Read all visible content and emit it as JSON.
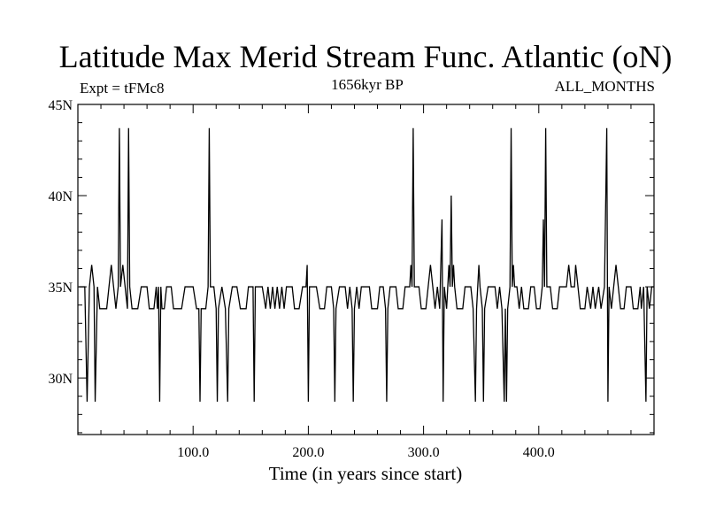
{
  "chart_data": {
    "type": "line",
    "title": "Latitude Max Merid Stream Func. Atlantic (oN)",
    "subtitle_left": "Expt = tFMc8",
    "subtitle_center": "1656kyr BP",
    "subtitle_right": "ALL_MONTHS",
    "xlabel": "Time (in years since start)",
    "ylabel": "",
    "xlim": [
      1,
      500
    ],
    "ylim": [
      26.9,
      45
    ],
    "x_ticks": [
      100,
      200,
      300,
      400
    ],
    "x_tick_labels": [
      "100.0",
      "200.0",
      "300.0",
      "400.0"
    ],
    "y_ticks": [
      30,
      35,
      40,
      45
    ],
    "y_tick_labels": [
      "30N",
      "35N",
      "40N",
      "45N"
    ],
    "grid": false,
    "series": [
      {
        "points": [
          [
            1,
            35.0
          ],
          [
            3,
            35.0
          ],
          [
            6,
            35.0
          ],
          [
            8,
            28.7
          ],
          [
            10,
            35.0
          ],
          [
            12,
            36.2
          ],
          [
            14,
            35.0
          ],
          [
            15,
            28.7
          ],
          [
            17,
            35.0
          ],
          [
            19,
            33.8
          ],
          [
            25,
            33.8
          ],
          [
            27,
            35.0
          ],
          [
            29,
            36.2
          ],
          [
            31,
            35.0
          ],
          [
            33,
            33.8
          ],
          [
            35,
            35.0
          ],
          [
            36,
            43.7
          ],
          [
            37,
            35.0
          ],
          [
            39,
            36.2
          ],
          [
            41,
            35.0
          ],
          [
            43,
            33.8
          ],
          [
            44,
            43.7
          ],
          [
            45,
            35.0
          ],
          [
            47,
            33.8
          ],
          [
            52,
            33.8
          ],
          [
            55,
            35.0
          ],
          [
            60,
            35.0
          ],
          [
            62,
            33.8
          ],
          [
            66,
            33.8
          ],
          [
            68,
            35.0
          ],
          [
            69,
            33.8
          ],
          [
            70,
            35.0
          ],
          [
            71,
            28.7
          ],
          [
            72,
            35.0
          ],
          [
            73,
            33.8
          ],
          [
            75,
            33.8
          ],
          [
            77,
            35.0
          ],
          [
            81,
            35.0
          ],
          [
            83,
            33.8
          ],
          [
            90,
            33.8
          ],
          [
            93,
            35.0
          ],
          [
            100,
            35.0
          ],
          [
            103,
            33.8
          ],
          [
            105,
            33.8
          ],
          [
            106,
            28.7
          ],
          [
            107,
            33.8
          ],
          [
            111,
            33.8
          ],
          [
            113,
            35.0
          ],
          [
            114,
            43.7
          ],
          [
            115,
            35.0
          ],
          [
            118,
            35.0
          ],
          [
            120,
            33.8
          ],
          [
            121,
            28.7
          ],
          [
            122,
            33.8
          ],
          [
            125,
            35.0
          ],
          [
            128,
            33.8
          ],
          [
            130,
            28.7
          ],
          [
            131,
            33.8
          ],
          [
            134,
            35.0
          ],
          [
            138,
            35.0
          ],
          [
            141,
            33.8
          ],
          [
            146,
            33.8
          ],
          [
            148,
            35.0
          ],
          [
            152,
            35.0
          ],
          [
            153,
            28.7
          ],
          [
            154,
            35.0
          ],
          [
            160,
            35.0
          ],
          [
            163,
            33.8
          ],
          [
            165,
            35.0
          ],
          [
            167,
            33.8
          ],
          [
            169,
            35.0
          ],
          [
            171,
            33.8
          ],
          [
            173,
            35.0
          ],
          [
            175,
            33.8
          ],
          [
            177,
            35.0
          ],
          [
            179,
            33.8
          ],
          [
            181,
            35.0
          ],
          [
            186,
            35.0
          ],
          [
            188,
            33.8
          ],
          [
            192,
            33.8
          ],
          [
            195,
            35.0
          ],
          [
            198,
            35.0
          ],
          [
            199,
            36.2
          ],
          [
            200,
            28.7
          ],
          [
            201,
            35.0
          ],
          [
            207,
            35.0
          ],
          [
            210,
            33.8
          ],
          [
            214,
            33.8
          ],
          [
            216,
            35.0
          ],
          [
            220,
            35.0
          ],
          [
            222,
            33.8
          ],
          [
            223,
            28.7
          ],
          [
            224,
            33.8
          ],
          [
            227,
            35.0
          ],
          [
            232,
            35.0
          ],
          [
            234,
            33.8
          ],
          [
            236,
            35.0
          ],
          [
            238,
            33.8
          ],
          [
            239,
            28.7
          ],
          [
            240,
            33.8
          ],
          [
            242,
            35.0
          ],
          [
            244,
            33.8
          ],
          [
            246,
            35.0
          ],
          [
            253,
            35.0
          ],
          [
            255,
            33.8
          ],
          [
            260,
            33.8
          ],
          [
            262,
            35.0
          ],
          [
            265,
            35.0
          ],
          [
            267,
            33.8
          ],
          [
            268,
            28.7
          ],
          [
            269,
            33.8
          ],
          [
            271,
            35.0
          ],
          [
            276,
            35.0
          ],
          [
            278,
            33.8
          ],
          [
            282,
            33.8
          ],
          [
            284,
            35.0
          ],
          [
            288,
            35.0
          ],
          [
            289,
            36.2
          ],
          [
            290,
            35.0
          ],
          [
            291,
            43.7
          ],
          [
            292,
            35.0
          ],
          [
            296,
            35.0
          ],
          [
            298,
            33.8
          ],
          [
            302,
            33.8
          ],
          [
            304,
            35.0
          ],
          [
            306,
            36.2
          ],
          [
            308,
            35.0
          ],
          [
            310,
            33.8
          ],
          [
            312,
            35.0
          ],
          [
            314,
            33.8
          ],
          [
            316,
            38.7
          ],
          [
            317,
            28.7
          ],
          [
            318,
            35.0
          ],
          [
            320,
            33.8
          ],
          [
            322,
            36.2
          ],
          [
            323,
            35.0
          ],
          [
            324,
            40.0
          ],
          [
            325,
            35.0
          ],
          [
            326,
            36.2
          ],
          [
            327,
            35.0
          ],
          [
            329,
            33.8
          ],
          [
            334,
            33.8
          ],
          [
            336,
            35.0
          ],
          [
            341,
            35.0
          ],
          [
            343,
            33.8
          ],
          [
            345,
            28.7
          ],
          [
            346,
            33.8
          ],
          [
            348,
            36.2
          ],
          [
            349,
            35.0
          ],
          [
            351,
            33.8
          ],
          [
            352,
            28.7
          ],
          [
            353,
            33.8
          ],
          [
            356,
            35.0
          ],
          [
            362,
            35.0
          ],
          [
            364,
            33.8
          ],
          [
            366,
            35.0
          ],
          [
            368,
            33.8
          ],
          [
            370,
            28.7
          ],
          [
            371,
            33.8
          ],
          [
            372,
            28.7
          ],
          [
            373,
            33.8
          ],
          [
            375,
            35.0
          ],
          [
            376,
            43.7
          ],
          [
            377,
            35.0
          ],
          [
            378,
            36.2
          ],
          [
            379,
            35.0
          ],
          [
            381,
            35.0
          ],
          [
            383,
            33.8
          ],
          [
            385,
            35.0
          ],
          [
            387,
            33.8
          ],
          [
            391,
            33.8
          ],
          [
            393,
            35.0
          ],
          [
            396,
            35.0
          ],
          [
            398,
            33.8
          ],
          [
            401,
            33.8
          ],
          [
            403,
            35.0
          ],
          [
            404,
            38.7
          ],
          [
            405,
            35.0
          ],
          [
            406,
            43.7
          ],
          [
            407,
            35.0
          ],
          [
            410,
            35.0
          ],
          [
            412,
            33.8
          ],
          [
            416,
            33.8
          ],
          [
            418,
            35.0
          ],
          [
            424,
            35.0
          ],
          [
            426,
            36.2
          ],
          [
            428,
            35.0
          ],
          [
            431,
            35.0
          ],
          [
            432,
            36.2
          ],
          [
            434,
            35.0
          ],
          [
            436,
            33.8
          ],
          [
            440,
            33.8
          ],
          [
            442,
            35.0
          ],
          [
            445,
            33.8
          ],
          [
            447,
            35.0
          ],
          [
            449,
            33.8
          ],
          [
            452,
            35.0
          ],
          [
            454,
            33.8
          ],
          [
            457,
            35.0
          ],
          [
            459,
            43.7
          ],
          [
            460,
            28.7
          ],
          [
            461,
            35.0
          ],
          [
            463,
            33.8
          ],
          [
            465,
            35.0
          ],
          [
            467,
            36.2
          ],
          [
            469,
            35.0
          ],
          [
            471,
            33.8
          ],
          [
            474,
            33.8
          ],
          [
            476,
            35.0
          ],
          [
            480,
            35.0
          ],
          [
            482,
            33.8
          ],
          [
            486,
            33.8
          ],
          [
            488,
            35.0
          ],
          [
            489,
            33.8
          ],
          [
            491,
            35.0
          ],
          [
            493,
            28.7
          ],
          [
            494,
            35.0
          ],
          [
            496,
            33.8
          ],
          [
            498,
            35.0
          ],
          [
            500,
            35.0
          ]
        ]
      }
    ]
  }
}
